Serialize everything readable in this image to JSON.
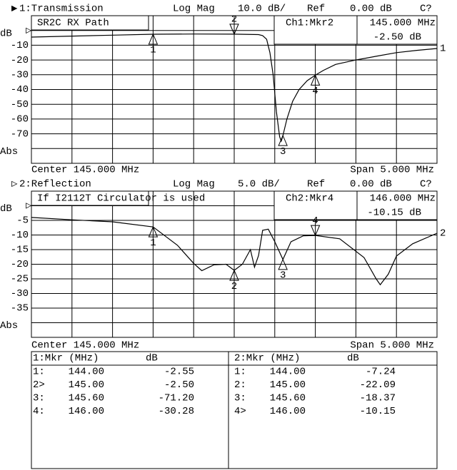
{
  "chart_data": [
    {
      "type": "line",
      "header": {
        "channel": "1:Transmission",
        "format": "Log Mag",
        "scale": "10.0 dB/",
        "reference": "Ref",
        "ref_value": "0.00 dB",
        "status": "C?"
      },
      "title": "SR2C RX Path",
      "readout": {
        "channel": "Ch1:Mkr2",
        "frequency": "145.000 MHz",
        "value": "-2.50 dB"
      },
      "trace_label": "1",
      "x": [
        142.5,
        143.0,
        143.5,
        144.0,
        144.5,
        145.0,
        145.3,
        145.35,
        145.4,
        145.44,
        145.48,
        145.52,
        145.56,
        145.58,
        145.6,
        145.65,
        145.72,
        145.8,
        145.9,
        146.0,
        146.1,
        146.25,
        146.5,
        146.75,
        147.0,
        147.25,
        147.5
      ],
      "values": [
        -4.5,
        -3.8,
        -3.2,
        -2.55,
        -2.4,
        -2.5,
        -2.8,
        -3.5,
        -6,
        -15,
        -30,
        -55,
        -72,
        -75,
        -71.2,
        -60,
        -48,
        -40,
        -34,
        -30.28,
        -27,
        -23,
        -20,
        -17.5,
        -15,
        -13.5,
        -12.2
      ],
      "color": "#000000",
      "markers": [
        {
          "label": "1",
          "x": 144.0,
          "value": -2.55,
          "active": false
        },
        {
          "label": "2",
          "x": 145.0,
          "value": -2.5,
          "active": true
        },
        {
          "label": "3",
          "x": 145.6,
          "value": -71.2,
          "active": false
        },
        {
          "label": "4",
          "x": 146.0,
          "value": -30.28,
          "active": false
        }
      ],
      "xlim": [
        142.5,
        147.5
      ],
      "ylim": [
        -90,
        10
      ],
      "yticks": [
        {
          "value": 0,
          "label": "dB"
        },
        -10,
        -20,
        -30,
        -40,
        -50,
        -60,
        -70,
        {
          "value": -80,
          "label": "Abs"
        }
      ],
      "grid": true,
      "footer": {
        "center": "Center 145.000 MHz",
        "span": "Span 5.000 MHz"
      }
    },
    {
      "type": "line",
      "header": {
        "channel": "2:Reflection",
        "format": "Log Mag",
        "scale": "5.0 dB/",
        "reference": "Ref",
        "ref_value": "0.00 dB",
        "status": "C?"
      },
      "title": "If I2112T Circulator is used",
      "readout": {
        "channel": "Ch2:Mkr4",
        "frequency": "146.000 MHz",
        "value": "-10.15 dB"
      },
      "trace_label": "2",
      "x": [
        142.5,
        143.0,
        143.5,
        144.0,
        144.3,
        144.5,
        144.6,
        144.75,
        144.9,
        145.0,
        145.1,
        145.2,
        145.25,
        145.3,
        145.35,
        145.42,
        145.5,
        145.6,
        145.7,
        145.85,
        146.0,
        146.3,
        146.6,
        146.75,
        146.8,
        146.9,
        147.0,
        147.2,
        147.5
      ],
      "values": [
        -4,
        -4.8,
        -5.5,
        -7.24,
        -13.5,
        -19.7,
        -22.2,
        -20.2,
        -20,
        -22.09,
        -20,
        -15,
        -21,
        -17,
        -8.4,
        -8,
        -12.3,
        -18.37,
        -12.3,
        -10.3,
        -10.15,
        -11.3,
        -17.7,
        -25,
        -27,
        -23.4,
        -17.2,
        -13,
        -9.4
      ],
      "color": "#000000",
      "markers": [
        {
          "label": "1",
          "x": 144.0,
          "value": -7.24,
          "active": false
        },
        {
          "label": "2",
          "x": 145.0,
          "value": -22.09,
          "active": false
        },
        {
          "label": "3",
          "x": 145.6,
          "value": -18.37,
          "active": false
        },
        {
          "label": "4",
          "x": 146.0,
          "value": -10.15,
          "active": true
        }
      ],
      "xlim": [
        142.5,
        147.5
      ],
      "ylim": [
        -45,
        5
      ],
      "yticks": [
        {
          "value": 0,
          "label": "dB"
        },
        -5,
        -10,
        -15,
        -20,
        -25,
        -30,
        -35,
        {
          "value": -40,
          "label": "Abs"
        }
      ],
      "grid": true,
      "footer": {
        "center": "Center 145.000 MHz",
        "span": "Span 5.000 MHz"
      }
    }
  ],
  "marker_table": {
    "panels": [
      {
        "header": [
          "1:Mkr (MHz)",
          "dB"
        ],
        "rows": [
          [
            "1:",
            "144.00",
            "-2.55"
          ],
          [
            "2>",
            "145.00",
            "-2.50"
          ],
          [
            "3:",
            "145.60",
            "-71.20"
          ],
          [
            "4:",
            "146.00",
            "-30.28"
          ]
        ]
      },
      {
        "header": [
          "2:Mkr (MHz)",
          "dB"
        ],
        "rows": [
          [
            "1:",
            "144.00",
            "-7.24"
          ],
          [
            "2:",
            "145.00",
            "-22.09"
          ],
          [
            "3:",
            "145.60",
            "-18.37"
          ],
          [
            "4>",
            "146.00",
            "-10.15"
          ]
        ]
      }
    ]
  }
}
